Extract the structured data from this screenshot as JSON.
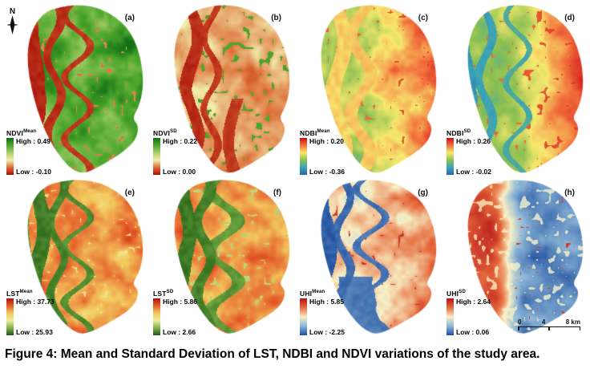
{
  "figure": {
    "caption": "Figure 4: Mean and Standard Deviation of LST, NDBI and NDVI variations of the study area.",
    "north_label": "N",
    "scale_bar": {
      "tick_labels": [
        "0",
        "4",
        "8 km"
      ]
    }
  },
  "panels": [
    {
      "id": "a",
      "label": "(a)",
      "legend": {
        "title": "NDVI",
        "sup": "Mean",
        "high_label": "High : 0.49",
        "low_label": "Low : -0.10",
        "ramp": [
          "#0f6e14",
          "#4da62c",
          "#a6d06a",
          "#f2efae",
          "#dd6a35",
          "#a60f0a"
        ]
      }
    },
    {
      "id": "b",
      "label": "(b)",
      "legend": {
        "title": "NDVI",
        "sup": "SD",
        "high_label": "High : 0.22",
        "low_label": "Low : 0.00",
        "ramp": [
          "#0f6e14",
          "#4da62c",
          "#a6d06a",
          "#f2efae",
          "#dd6a35",
          "#a60f0a"
        ]
      }
    },
    {
      "id": "c",
      "label": "(c)",
      "legend": {
        "title": "NDBI",
        "sup": "Mean",
        "high_label": "High : 0.20",
        "low_label": "Low : -0.36",
        "ramp": [
          "#ca0d14",
          "#f2703c",
          "#f7e96e",
          "#8cc051",
          "#3aa3b8",
          "#2a62ac"
        ]
      }
    },
    {
      "id": "d",
      "label": "(d)",
      "legend": {
        "title": "NDBI",
        "sup": "SD",
        "high_label": "High : 0.26",
        "low_label": "Low : -0.02",
        "ramp": [
          "#ca0d14",
          "#f2703c",
          "#f7e96e",
          "#8cc051",
          "#3aa3b8",
          "#2a62ac"
        ]
      }
    },
    {
      "id": "e",
      "label": "(e)",
      "legend": {
        "title": "LST",
        "sup": "Mean",
        "high_label": "High : 37.73",
        "low_label": "Low : 25.93",
        "ramp": [
          "#b0130c",
          "#e55d2b",
          "#f3c95e",
          "#f0ee9e",
          "#7fb54a",
          "#1c5a12"
        ]
      }
    },
    {
      "id": "f",
      "label": "(f)",
      "legend": {
        "title": "LST",
        "sup": "SD",
        "high_label": "High : 5.86",
        "low_label": "Low : 2.66",
        "ramp": [
          "#b0130c",
          "#e55d2b",
          "#f3c95e",
          "#f0ee9e",
          "#7fb54a",
          "#1c5a12"
        ]
      }
    },
    {
      "id": "g",
      "label": "(g)",
      "legend": {
        "title": "UHI",
        "sup": "Mean",
        "high_label": "High : 5.85",
        "low_label": "Low : -2.25",
        "ramp": [
          "#b5121b",
          "#e66a3c",
          "#f8f0c6",
          "#8cb6d8",
          "#1f4f9e"
        ]
      }
    },
    {
      "id": "h",
      "label": "(h)",
      "legend": {
        "title": "UHI",
        "sup": "SD",
        "high_label": "High : 2.64",
        "low_label": "Low : 0.06",
        "ramp": [
          "#b5121b",
          "#e66a3c",
          "#f8f0c6",
          "#8cb6d8",
          "#1f4f9e"
        ]
      }
    }
  ]
}
